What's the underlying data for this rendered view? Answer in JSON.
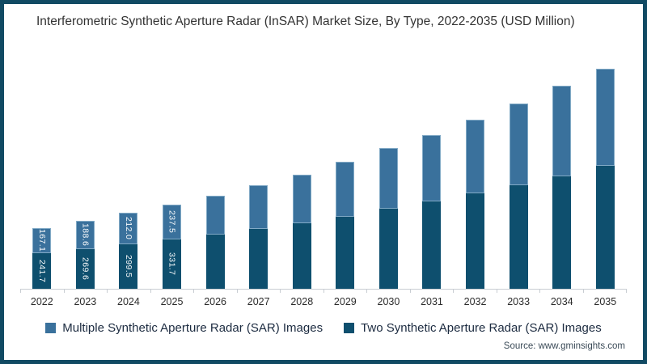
{
  "title": "Interferometric Synthetic Aperture Radar (InSAR) Market Size, By Type, 2022-2035 (USD Million)",
  "source": "Source: www.gminsights.com",
  "frame": {
    "border_color": "#114a63",
    "background": "#ffffff"
  },
  "legend": [
    {
      "label": "Multiple Synthetic Aperture Radar (SAR) Images",
      "color": "#3a719c"
    },
    {
      "label": "Two Synthetic Aperture Radar (SAR) Images",
      "color": "#0e4f6e"
    }
  ],
  "chart_data": {
    "type": "bar",
    "stacked": true,
    "title": "Interferometric Synthetic Aperture Radar (InSAR) Market Size, By Type, 2022-2035 (USD Million)",
    "xlabel": "",
    "ylabel": "USD Million",
    "ylim": [
      0,
      1580
    ],
    "grid": false,
    "legend_position": "bottom",
    "categories": [
      "2022",
      "2023",
      "2024",
      "2025",
      "2026",
      "2027",
      "2028",
      "2029",
      "2030",
      "2031",
      "2032",
      "2033",
      "2034",
      "2035"
    ],
    "series": [
      {
        "name": "Two Synthetic Aperture Radar (SAR) Images",
        "color": "#0e4f6e",
        "values": [
          241.7,
          269.6,
          299.5,
          331.7,
          363,
          404,
          442,
          486,
          539,
          588,
          642,
          695,
          756,
          830
        ],
        "data_labels": [
          "241.7",
          "269.6",
          "299.5",
          "331.7",
          null,
          null,
          null,
          null,
          null,
          null,
          null,
          null,
          null,
          null
        ]
      },
      {
        "name": "Multiple Synthetic Aperture Radar (SAR) Images",
        "color": "#3a719c",
        "values": [
          167.1,
          188.6,
          212.0,
          237.5,
          266,
          292,
          325,
          368,
          411,
          447,
          497,
          552,
          611,
          655
        ],
        "data_labels": [
          "167.1",
          "188.6",
          "212.0",
          "237.5",
          null,
          null,
          null,
          null,
          null,
          null,
          null,
          null,
          null,
          null
        ]
      }
    ]
  }
}
